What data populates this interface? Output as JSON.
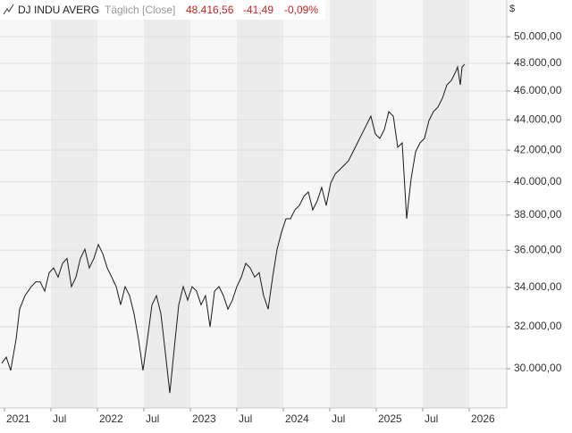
{
  "chart_data": {
    "type": "line",
    "title": "DJ INDU AVERG",
    "subtitle": "Täglich [Close]",
    "last_value": "48.416,56",
    "change": "-41,49",
    "change_percent": "-0,09%",
    "y_unit": "$",
    "color": "#1a1a1a",
    "log_scale": true,
    "grid": true,
    "x": [
      2020.971,
      2021.019,
      2021.067,
      2021.125,
      2021.163,
      2021.221,
      2021.288,
      2021.337,
      2021.385,
      2021.433,
      2021.481,
      2021.529,
      2021.577,
      2021.625,
      2021.673,
      2021.721,
      2021.769,
      2021.817,
      2021.865,
      2021.913,
      2021.962,
      2022.01,
      2022.058,
      2022.106,
      2022.154,
      2022.202,
      2022.25,
      2022.298,
      2022.346,
      2022.394,
      2022.442,
      2022.49,
      2022.538,
      2022.587,
      2022.635,
      2022.683,
      2022.731,
      2022.779,
      2022.827,
      2022.875,
      2022.923,
      2022.971,
      2023.019,
      2023.067,
      2023.115,
      2023.163,
      2023.212,
      2023.26,
      2023.308,
      2023.356,
      2023.404,
      2023.452,
      2023.5,
      2023.548,
      2023.596,
      2023.644,
      2023.692,
      2023.74,
      2023.788,
      2023.837,
      2023.885,
      2023.933,
      2023.981,
      2024.029,
      2024.077,
      2024.125,
      2024.173,
      2024.221,
      2024.269,
      2024.317,
      2024.365,
      2024.413,
      2024.462,
      2024.51,
      2024.558,
      2024.606,
      2024.654,
      2024.702,
      2024.75,
      2024.798,
      2024.846,
      2024.894,
      2024.942,
      2024.99,
      2025.038,
      2025.087,
      2025.135,
      2025.183,
      2025.231,
      2025.279,
      2025.327,
      2025.375,
      2025.423,
      2025.471,
      2025.519,
      2025.567,
      2025.615,
      2025.663,
      2025.712,
      2025.76,
      2025.808,
      2025.856,
      2025.875,
      2025.904,
      2025.923,
      2025.952
    ],
    "values": [
      30250,
      30540,
      29920,
      31390,
      32880,
      33570,
      34040,
      34290,
      34290,
      33800,
      34780,
      35030,
      34540,
      35280,
      35550,
      34040,
      34540,
      35550,
      36060,
      35030,
      35550,
      36320,
      35800,
      35030,
      34540,
      34040,
      33100,
      34040,
      33570,
      32650,
      31390,
      29920,
      31390,
      33100,
      33570,
      32650,
      30750,
      28900,
      30960,
      33100,
      34040,
      33340,
      34040,
      33800,
      33100,
      33570,
      32000,
      33800,
      34040,
      33570,
      32880,
      33340,
      34040,
      34540,
      35280,
      35030,
      34540,
      34780,
      33570,
      32880,
      34540,
      36060,
      37020,
      37790,
      37790,
      38310,
      38570,
      39110,
      39380,
      38310,
      38840,
      39650,
      38570,
      39920,
      40480,
      40750,
      41030,
      41320,
      41890,
      42470,
      43060,
      43650,
      44250,
      43060,
      42760,
      43350,
      44560,
      44250,
      42180,
      42470,
      37790,
      40190,
      41890,
      42470,
      42760,
      43950,
      44560,
      44870,
      45490,
      46430,
      46750,
      47400,
      47730,
      46430,
      47730,
      47930
    ],
    "xlim": [
      2020.952,
      2026.404
    ],
    "xticks": [
      2021,
      {
        "value": 2021.5,
        "label": "Jul"
      },
      2022,
      {
        "value": 2022.5,
        "label": "Jul"
      },
      2023,
      {
        "value": 2023.5,
        "label": "Jul"
      },
      2024,
      {
        "value": 2024.5,
        "label": "Jul"
      },
      2025,
      {
        "value": 2025.5,
        "label": "Jul"
      },
      2026
    ],
    "ylim": [
      28240,
      52910
    ],
    "yticks": [
      {
        "value": 30000,
        "label": "30.000,00"
      },
      {
        "value": 32000,
        "label": "32.000,00"
      },
      {
        "value": 34000,
        "label": "34.000,00"
      },
      {
        "value": 36000,
        "label": "36.000,00"
      },
      {
        "value": 38000,
        "label": "38.000,00"
      },
      {
        "value": 40000,
        "label": "40.000,00"
      },
      {
        "value": 42000,
        "label": "42.000,00"
      },
      {
        "value": 44000,
        "label": "44.000,00"
      },
      {
        "value": 46000,
        "label": "46.000,00"
      },
      {
        "value": 48000,
        "label": "48.000,00"
      },
      {
        "value": 50000,
        "label": "50.000,00"
      }
    ]
  }
}
